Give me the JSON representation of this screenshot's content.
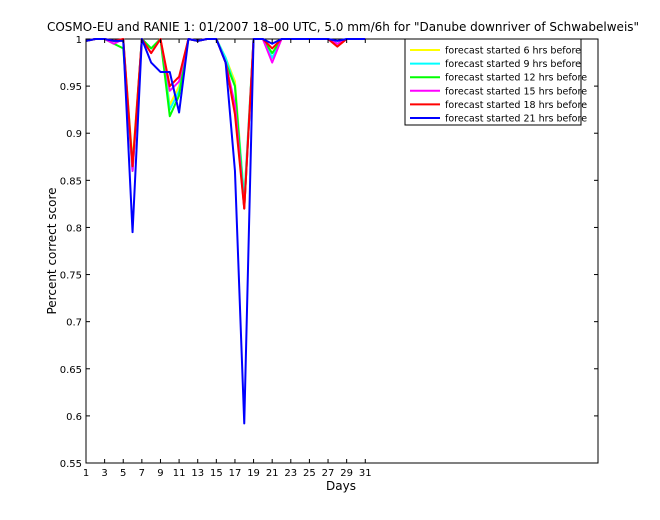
{
  "chart_data": {
    "type": "line",
    "title": "COSMO-EU and RANIE 1: 01/2007 18–00 UTC, 5.0 mm/6h for \"Danube downriver of Schwabelweis\"",
    "xlabel": "Days",
    "ylabel": "Percent correct score",
    "xlim": [
      1,
      56
    ],
    "ylim": [
      0.55,
      1.0
    ],
    "xticks": [
      1,
      3,
      5,
      7,
      9,
      11,
      13,
      15,
      17,
      19,
      21,
      23,
      25,
      27,
      29,
      31
    ],
    "yticks": [
      0.55,
      0.6,
      0.65,
      0.7,
      0.75,
      0.8,
      0.85,
      0.9,
      0.95,
      1
    ],
    "ytick_labels": [
      "0.55",
      "0.6",
      "0.65",
      "0.7",
      "0.75",
      "0.8",
      "0.85",
      "0.9",
      "0.95",
      "1"
    ],
    "grid": false,
    "legend_position": "top-right",
    "x": [
      1,
      2,
      3,
      4,
      5,
      6,
      7,
      8,
      9,
      10,
      11,
      12,
      13,
      14,
      15,
      16,
      17,
      18,
      19,
      20,
      21,
      22,
      23,
      24,
      25,
      26,
      27,
      28,
      29,
      30,
      31
    ],
    "series": [
      {
        "name": "forecast started 6 hrs before",
        "color": "#ffff00",
        "values": [
          0.998,
          1,
          1,
          0.995,
          1,
          0.87,
          1,
          0.99,
          1,
          0.93,
          0.95,
          1,
          0.998,
          1,
          1,
          0.98,
          0.955,
          0.83,
          1,
          1,
          0.98,
          1,
          1,
          1,
          1,
          1,
          1,
          0.995,
          1,
          1,
          1
        ]
      },
      {
        "name": "forecast started 9 hrs before",
        "color": "#00ffff",
        "values": [
          0.998,
          1,
          1,
          0.995,
          1,
          0.865,
          1,
          0.99,
          1,
          0.925,
          0.945,
          1,
          0.998,
          1,
          1,
          0.98,
          0.95,
          0.83,
          1,
          1,
          0.98,
          1,
          1,
          1,
          1,
          1,
          1,
          0.995,
          1,
          1,
          1
        ]
      },
      {
        "name": "forecast started 12 hrs before",
        "color": "#00ff00",
        "values": [
          0.998,
          1,
          1,
          0.995,
          0.99,
          0.86,
          1,
          0.99,
          1,
          0.918,
          0.94,
          1,
          0.998,
          1,
          1,
          0.975,
          0.95,
          0.82,
          1,
          1,
          0.985,
          1,
          1,
          1,
          1,
          1,
          1,
          0.995,
          1,
          1,
          1
        ]
      },
      {
        "name": "forecast started 15 hrs before",
        "color": "#ff00ff",
        "values": [
          0.998,
          1,
          1,
          0.995,
          1,
          0.86,
          1,
          0.985,
          1,
          0.945,
          0.955,
          1,
          0.998,
          1,
          1,
          0.975,
          0.93,
          0.82,
          1,
          1,
          0.975,
          1,
          1,
          1,
          1,
          1,
          1,
          0.995,
          1,
          1,
          1
        ]
      },
      {
        "name": "forecast started 18 hrs before",
        "color": "#ff0000",
        "values": [
          0.998,
          1,
          1,
          0.998,
          1,
          0.865,
          1,
          0.985,
          1,
          0.95,
          0.96,
          1,
          0.998,
          1,
          1,
          0.975,
          0.92,
          0.82,
          1,
          1,
          0.99,
          1,
          1,
          1,
          1,
          1,
          1,
          0.992,
          1,
          1,
          1
        ]
      },
      {
        "name": "forecast started 21 hrs before",
        "color": "#0000ff",
        "values": [
          0.998,
          1,
          1,
          0.998,
          0.998,
          0.795,
          1,
          0.975,
          0.965,
          0.965,
          0.922,
          1,
          0.998,
          1,
          1,
          0.975,
          0.86,
          0.592,
          1,
          1,
          0.995,
          1,
          1,
          1,
          1,
          1,
          1,
          0.998,
          1,
          1,
          1
        ]
      }
    ]
  }
}
